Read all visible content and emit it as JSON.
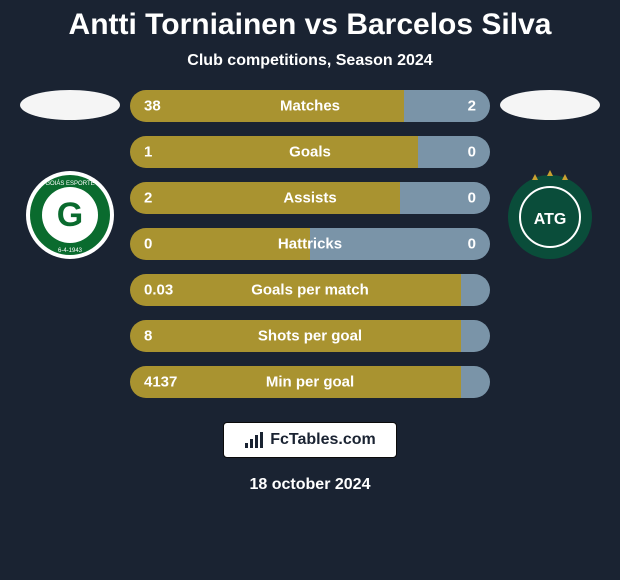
{
  "title": "Antti Torniainen vs Barcelos Silva",
  "subtitle": "Club competitions, Season 2024",
  "footer_brand": "FcTables.com",
  "footer_date": "18 october 2024",
  "colors": {
    "background": "#1a2332",
    "bar_a": "#a99330",
    "bar_b": "#7a94a8",
    "text": "#ffffff",
    "ellipse": "#f5f5f5",
    "footer_bg": "#ffffff",
    "footer_text": "#1a2332"
  },
  "club_left": {
    "main_color": "#0a6b2e",
    "ring_color": "#ffffff",
    "letter": "G"
  },
  "club_right": {
    "main_color": "#0a4d3a",
    "letter": "ATG"
  },
  "stats": [
    {
      "label": "Matches",
      "a": "38",
      "b": "2",
      "a_pct": 76,
      "b_pct": 24
    },
    {
      "label": "Goals",
      "a": "1",
      "b": "0",
      "a_pct": 80,
      "b_pct": 20
    },
    {
      "label": "Assists",
      "a": "2",
      "b": "0",
      "a_pct": 75,
      "b_pct": 25
    },
    {
      "label": "Hattricks",
      "a": "0",
      "b": "0",
      "a_pct": 50,
      "b_pct": 50
    },
    {
      "label": "Goals per match",
      "a": "0.03",
      "b": "",
      "a_pct": 92,
      "b_pct": 8
    },
    {
      "label": "Shots per goal",
      "a": "8",
      "b": "",
      "a_pct": 92,
      "b_pct": 8
    },
    {
      "label": "Min per goal",
      "a": "4137",
      "b": "",
      "a_pct": 92,
      "b_pct": 8
    }
  ]
}
